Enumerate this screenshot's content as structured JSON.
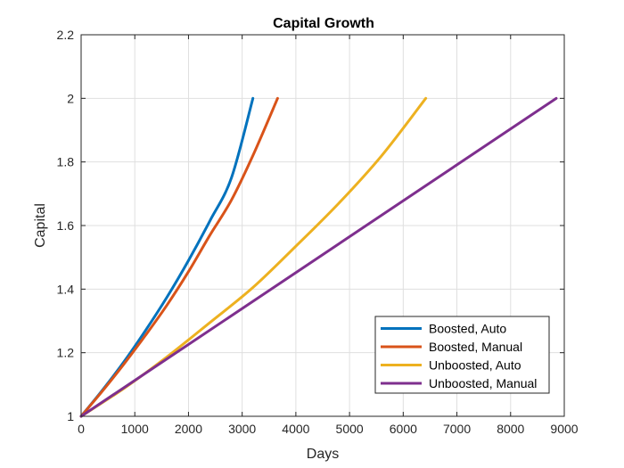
{
  "chart_data": {
    "type": "line",
    "title": "Capital Growth",
    "xlabel": "Days",
    "ylabel": "Capital",
    "xlim": [
      0,
      9000
    ],
    "ylim": [
      1,
      2.2
    ],
    "xticks": [
      0,
      1000,
      2000,
      3000,
      4000,
      5000,
      6000,
      7000,
      8000,
      9000
    ],
    "xtick_labels": [
      "0",
      "1000",
      "2000",
      "3000",
      "4000",
      "5000",
      "6000",
      "7000",
      "8000",
      "9000"
    ],
    "yticks": [
      1,
      1.2,
      1.4,
      1.6,
      1.8,
      2,
      2.2
    ],
    "ytick_labels": [
      "1",
      "1.2",
      "1.4",
      "1.6",
      "1.8",
      "2",
      "2.2"
    ],
    "grid": true,
    "legend_position": "bottom-right",
    "series": [
      {
        "name": "Boosted, Auto",
        "color": "#0072BD",
        "x": [
          0,
          400,
          800,
          1200,
          1600,
          2000,
          2400,
          2800,
          3200
        ],
        "y": [
          1,
          1.083,
          1.172,
          1.27,
          1.375,
          1.49,
          1.615,
          1.75,
          2.0
        ]
      },
      {
        "name": "Boosted, Manual",
        "color": "#D95319",
        "x": [
          0,
          400,
          800,
          1200,
          1600,
          2000,
          2400,
          2800,
          3200,
          3660
        ],
        "y": [
          1,
          1.08,
          1.165,
          1.255,
          1.35,
          1.455,
          1.57,
          1.68,
          1.82,
          2.0
        ]
      },
      {
        "name": "Unboosted, Auto",
        "color": "#EDB120",
        "x": [
          0,
          800,
          1600,
          2400,
          3200,
          4000,
          4800,
          5600,
          6420
        ],
        "y": [
          1,
          1.088,
          1.187,
          1.295,
          1.405,
          1.535,
          1.67,
          1.82,
          2.0
        ]
      },
      {
        "name": "Unboosted, Manual",
        "color": "#7E2F8E",
        "x": [
          0,
          8850
        ],
        "y": [
          1,
          2.0
        ]
      }
    ]
  }
}
